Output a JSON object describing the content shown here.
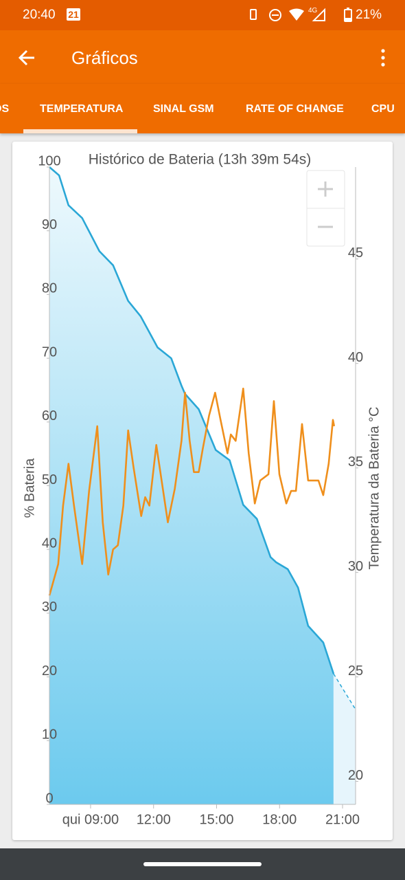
{
  "status_bar": {
    "time": "20:40",
    "calendar_day": "21",
    "network": "4G",
    "battery": "21%"
  },
  "app_bar": {
    "title": "Gráficos"
  },
  "tabs": [
    "OS",
    "TEMPERATURA",
    "SINAL GSM",
    "RATE OF CHANGE",
    "CPU"
  ],
  "chart_data": {
    "type": "line",
    "title": "Histórico de Bateria (13h 39m 54s)",
    "y_label": "% Bateria",
    "y2_label": "Temperatura da Bateria °C",
    "xlim": [
      7.04,
      21.62
    ],
    "xticks": [
      {
        "value": 9,
        "label": "qui 09:00"
      },
      {
        "value": 12,
        "label": "12:00"
      },
      {
        "value": 15,
        "label": "15:00"
      },
      {
        "value": 18,
        "label": "18:00"
      },
      {
        "value": 21,
        "label": "21:00"
      }
    ],
    "ylim": [
      0,
      100
    ],
    "yticks": [
      0,
      10,
      20,
      30,
      40,
      50,
      60,
      70,
      80,
      90,
      100
    ],
    "y2lim": [
      18.9,
      49.4
    ],
    "y2ticks": [
      20,
      25,
      30,
      35,
      40,
      45
    ],
    "series": [
      {
        "color": "#2aa7d6",
        "fill": true,
        "x": [
          7.04,
          7.5,
          7.95,
          8.6,
          9.42,
          10.07,
          10.79,
          11.38,
          12.19,
          12.84,
          13.33,
          13.5,
          14.15,
          14.96,
          15.62,
          16.27,
          16.92,
          17.57,
          17.83,
          18.39,
          18.88,
          19.36,
          20.08,
          20.57
        ],
        "values": [
          100,
          98.7,
          94,
          92,
          86.8,
          84.6,
          79,
          76.6,
          71.7,
          70,
          65.7,
          64.4,
          62,
          55.6,
          54,
          47,
          44.8,
          38.8,
          38,
          36.9,
          34,
          28,
          25.4,
          20.5
        ]
      },
      {
        "color": "#2aa7d6",
        "dashed": true,
        "x": [
          20.57,
          21.58
        ],
        "values": [
          20.5,
          15.1
        ]
      },
      {
        "color": "#ef8f1c",
        "axis": "y2",
        "x": [
          7.04,
          7.46,
          7.69,
          7.95,
          8.21,
          8.6,
          8.93,
          9.32,
          9.58,
          9.84,
          10.07,
          10.3,
          10.56,
          10.79,
          11.05,
          11.41,
          11.6,
          11.8,
          12.13,
          12.68,
          13.01,
          13.33,
          13.5,
          13.72,
          13.92,
          14.15,
          14.34,
          14.64,
          14.93,
          15.19,
          15.52,
          15.68,
          15.91,
          16.27,
          16.53,
          16.82,
          17.08,
          17.47,
          17.73,
          17.99,
          18.32,
          18.55,
          18.78,
          19.07,
          19.36,
          19.85,
          20.08,
          20.34,
          20.54,
          20.6
        ],
        "values": [
          28.9,
          30.4,
          33.2,
          35.2,
          33.2,
          30.4,
          33.9,
          37,
          32.4,
          29.9,
          31.1,
          31.3,
          33.2,
          36.8,
          35,
          32.7,
          33.6,
          33.2,
          36.1,
          32.4,
          34,
          36.3,
          38.6,
          36.3,
          34.8,
          34.8,
          35.9,
          37.5,
          38.6,
          37.3,
          35.7,
          36.6,
          36.3,
          38.8,
          35.7,
          33.3,
          34.4,
          34.7,
          38.2,
          34.7,
          33.3,
          33.9,
          33.9,
          37.1,
          34.4,
          34.4,
          33.7,
          35.2,
          37.3,
          37
        ]
      }
    ]
  }
}
